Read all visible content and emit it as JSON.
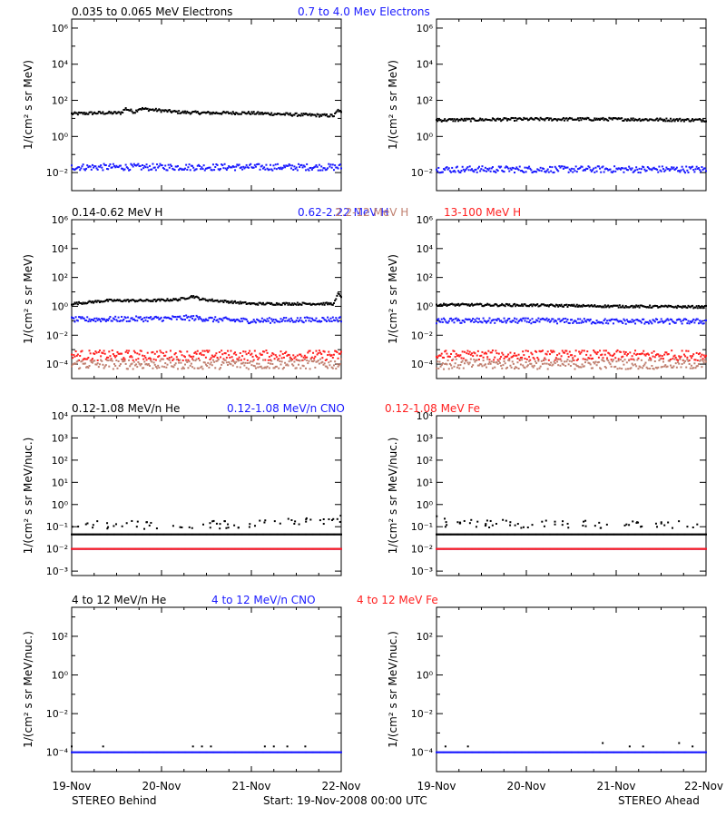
{
  "figure": {
    "x_ticks": [
      "19-Nov",
      "20-Nov",
      "21-Nov",
      "22-Nov"
    ],
    "footer_left": "STEREO Behind",
    "footer_center": "Start: 19-Nov-2008 00:00 UTC",
    "footer_right": "STEREO Ahead"
  },
  "colors": {
    "black": "#000000",
    "blue": "#1a1aff",
    "salmon": "#c08070",
    "red": "#ff2020"
  },
  "chart_data": [
    {
      "type": "scatter",
      "row": 0,
      "ylabel": "1/(cm² s sr MeV)",
      "yticks": [
        {
          "exp": -2,
          "text": "10⁻²"
        },
        {
          "exp": 0,
          "text": "10⁰"
        },
        {
          "exp": 2,
          "text": "10²"
        },
        {
          "exp": 4,
          "text": "10⁴"
        },
        {
          "exp": 6,
          "text": "10⁶"
        }
      ],
      "ylim_exp": [
        -3,
        6.5
      ],
      "legend": [
        {
          "text": "0.035 to 0.065 MeV Electrons",
          "color": "black"
        },
        {
          "text": "0.7 to 4.0 Mev Electrons",
          "color": "blue"
        }
      ],
      "panels": [
        {
          "side": "STEREO Behind",
          "series": [
            {
              "color": "black",
              "level": 20,
              "x": [
                0.0,
                0.3,
                0.55,
                0.6,
                0.7,
                0.75,
                1.2,
                1.5,
                1.95,
                2.5,
                2.92,
                2.97,
                3.0
              ],
              "y": [
                18,
                20,
                20,
                35,
                22,
                35,
                22,
                20,
                20,
                16,
                14,
                30,
                20
              ]
            },
            {
              "color": "blue",
              "level": 0.02,
              "x": [
                0.0,
                1.0,
                2.0,
                3.0
              ],
              "y": [
                0.02,
                0.02,
                0.02,
                0.02
              ]
            }
          ]
        },
        {
          "side": "STEREO Ahead",
          "series": [
            {
              "color": "black",
              "level": 8,
              "x": [
                0.0,
                1.0,
                2.0,
                3.0
              ],
              "y": [
                8,
                9,
                9,
                8
              ]
            },
            {
              "color": "blue",
              "level": 0.015,
              "x": [
                0.0,
                1.0,
                2.0,
                3.0
              ],
              "y": [
                0.015,
                0.015,
                0.015,
                0.015
              ]
            }
          ]
        }
      ]
    },
    {
      "type": "scatter",
      "row": 1,
      "ylabel": "1/(cm² s sr MeV)",
      "yticks": [
        {
          "exp": -4,
          "text": "10⁻⁴"
        },
        {
          "exp": -2,
          "text": "10⁻²"
        },
        {
          "exp": 0,
          "text": "10⁰"
        },
        {
          "exp": 2,
          "text": "10²"
        },
        {
          "exp": 4,
          "text": "10⁴"
        },
        {
          "exp": 6,
          "text": "10⁶"
        }
      ],
      "ylim_exp": [
        -5,
        6
      ],
      "legend": [
        {
          "text": "0.14-0.62 MeV H",
          "color": "black"
        },
        {
          "text": "0.62-2.22 MeV H",
          "color": "blue"
        },
        {
          "text": "2.2-12 MeV H",
          "color": "salmon"
        },
        {
          "text": "13-100 MeV H",
          "color": "red"
        }
      ],
      "panels": [
        {
          "side": "STEREO Behind",
          "series": [
            {
              "color": "black",
              "level": 2,
              "x": [
                0.0,
                0.4,
                0.9,
                1.2,
                1.35,
                1.45,
                1.6,
                2.0,
                2.5,
                2.92,
                2.97,
                3.0
              ],
              "y": [
                1.5,
                2.5,
                2.5,
                3,
                5,
                3,
                2.5,
                1.5,
                1.5,
                1.5,
                8,
                5
              ]
            },
            {
              "color": "blue",
              "level": 0.12,
              "x": [
                0.0,
                1.0,
                1.35,
                1.6,
                2.0,
                3.0
              ],
              "y": [
                0.12,
                0.14,
                0.16,
                0.12,
                0.1,
                0.13
              ]
            },
            {
              "color": "red",
              "level": 0.0004,
              "x": [
                0.0,
                1.0,
                2.0,
                3.0
              ],
              "y": [
                0.0004,
                0.0004,
                0.0004,
                0.0004
              ]
            },
            {
              "color": "salmon",
              "level": 0.0001,
              "x": [
                0.0,
                1.0,
                2.0,
                3.0
              ],
              "y": [
                0.0001,
                0.0001,
                0.0001,
                0.0001
              ]
            }
          ]
        },
        {
          "side": "STEREO Ahead",
          "series": [
            {
              "color": "black",
              "level": 1,
              "x": [
                0.0,
                1.0,
                2.0,
                3.0
              ],
              "y": [
                1.3,
                1.2,
                1.0,
                0.9
              ]
            },
            {
              "color": "blue",
              "level": 0.1,
              "x": [
                0.0,
                1.0,
                2.0,
                3.0
              ],
              "y": [
                0.1,
                0.1,
                0.09,
                0.09
              ]
            },
            {
              "color": "red",
              "level": 0.0004,
              "x": [
                0.0,
                1.0,
                2.0,
                3.0
              ],
              "y": [
                0.0004,
                0.0004,
                0.0004,
                0.0004
              ]
            },
            {
              "color": "salmon",
              "level": 0.0001,
              "x": [
                0.0,
                1.0,
                2.0,
                3.0
              ],
              "y": [
                0.0001,
                0.0001,
                0.0001,
                0.0001
              ]
            }
          ]
        }
      ]
    },
    {
      "type": "scatter",
      "row": 2,
      "ylabel": "1/(cm² s sr MeV/nuc.)",
      "yticks": [
        {
          "exp": -3,
          "text": "10⁻³"
        },
        {
          "exp": -2,
          "text": "10⁻²"
        },
        {
          "exp": -1,
          "text": "10⁻¹"
        },
        {
          "exp": 0,
          "text": "10⁰"
        },
        {
          "exp": 1,
          "text": "10¹"
        },
        {
          "exp": 2,
          "text": "10²"
        },
        {
          "exp": 3,
          "text": "10³"
        },
        {
          "exp": 4,
          "text": "10⁴"
        }
      ],
      "ylim_exp": [
        -3.2,
        4
      ],
      "legend": [
        {
          "text": "0.12-1.08 MeV/n He",
          "color": "black"
        },
        {
          "text": "0.12-1.08 MeV/n CNO",
          "color": "blue"
        },
        {
          "text": "0.12-1.08 MeV Fe",
          "color": "red"
        }
      ],
      "panels": [
        {
          "side": "STEREO Behind",
          "series": [
            {
              "color": "black",
              "level": 0.045,
              "x": [
                0.0,
                3.0
              ],
              "y": [
                0.045,
                0.045
              ]
            },
            {
              "color": "black",
              "level": 0.12,
              "x": [
                0.0,
                1.0,
                2.0,
                2.95,
                3.0
              ],
              "y": [
                0.12,
                0.12,
                0.12,
                0.2,
                0.25
              ]
            },
            {
              "color": "blue",
              "level": 0.01,
              "x": [
                0.0,
                3.0
              ],
              "y": [
                0.01,
                0.01
              ]
            },
            {
              "color": "red",
              "level": 0.01,
              "x": [
                0.0,
                3.0
              ],
              "y": [
                0.01,
                0.01
              ]
            }
          ]
        },
        {
          "side": "STEREO Ahead",
          "series": [
            {
              "color": "black",
              "level": 0.045,
              "x": [
                0.0,
                3.0
              ],
              "y": [
                0.045,
                0.045
              ]
            },
            {
              "color": "black",
              "level": 0.12,
              "x": [
                0.0,
                0.05,
                0.1,
                1.0,
                2.0,
                3.0
              ],
              "y": [
                0.3,
                0.25,
                0.15,
                0.13,
                0.13,
                0.12
              ]
            },
            {
              "color": "blue",
              "level": 0.01,
              "x": [
                0.0,
                3.0
              ],
              "y": [
                0.01,
                0.01
              ]
            },
            {
              "color": "red",
              "level": 0.01,
              "x": [
                0.0,
                3.0
              ],
              "y": [
                0.01,
                0.01
              ]
            }
          ]
        }
      ]
    },
    {
      "type": "scatter",
      "row": 3,
      "ylabel": "1/(cm² s sr MeV/nuc.)",
      "yticks": [
        {
          "exp": -4,
          "text": "10⁻⁴"
        },
        {
          "exp": -2,
          "text": "10⁻²"
        },
        {
          "exp": 0,
          "text": "10⁰"
        },
        {
          "exp": 2,
          "text": "10²"
        }
      ],
      "ylim_exp": [
        -5,
        3.5
      ],
      "legend": [
        {
          "text": "4 to 12 MeV/n He",
          "color": "black"
        },
        {
          "text": "4 to 12 MeV/n CNO",
          "color": "blue"
        },
        {
          "text": "4 to 12 MeV Fe",
          "color": "red"
        }
      ],
      "panels": [
        {
          "side": "STEREO Behind",
          "series": [
            {
              "color": "blue",
              "level": 0.0001,
              "x": [
                0.0,
                3.0
              ],
              "y": [
                0.0001,
                0.0001
              ]
            },
            {
              "color": "black",
              "level": 0.0002,
              "x": [
                0.0,
                0.35,
                1.35,
                1.45,
                1.55,
                2.15,
                2.25,
                2.4,
                2.6
              ],
              "y": [
                0.0002,
                0.0002,
                0.0002,
                0.0002,
                0.0002,
                0.0002,
                0.0002,
                0.0002,
                0.0002
              ]
            }
          ]
        },
        {
          "side": "STEREO Ahead",
          "series": [
            {
              "color": "blue",
              "level": 0.0001,
              "x": [
                0.0,
                3.0
              ],
              "y": [
                0.0001,
                0.0001
              ]
            },
            {
              "color": "black",
              "level": 0.0002,
              "x": [
                0.1,
                0.35,
                1.85,
                2.15,
                2.3,
                2.7,
                2.85
              ],
              "y": [
                0.0002,
                0.0002,
                0.0003,
                0.0002,
                0.0002,
                0.0003,
                0.0002
              ]
            }
          ]
        }
      ]
    }
  ]
}
